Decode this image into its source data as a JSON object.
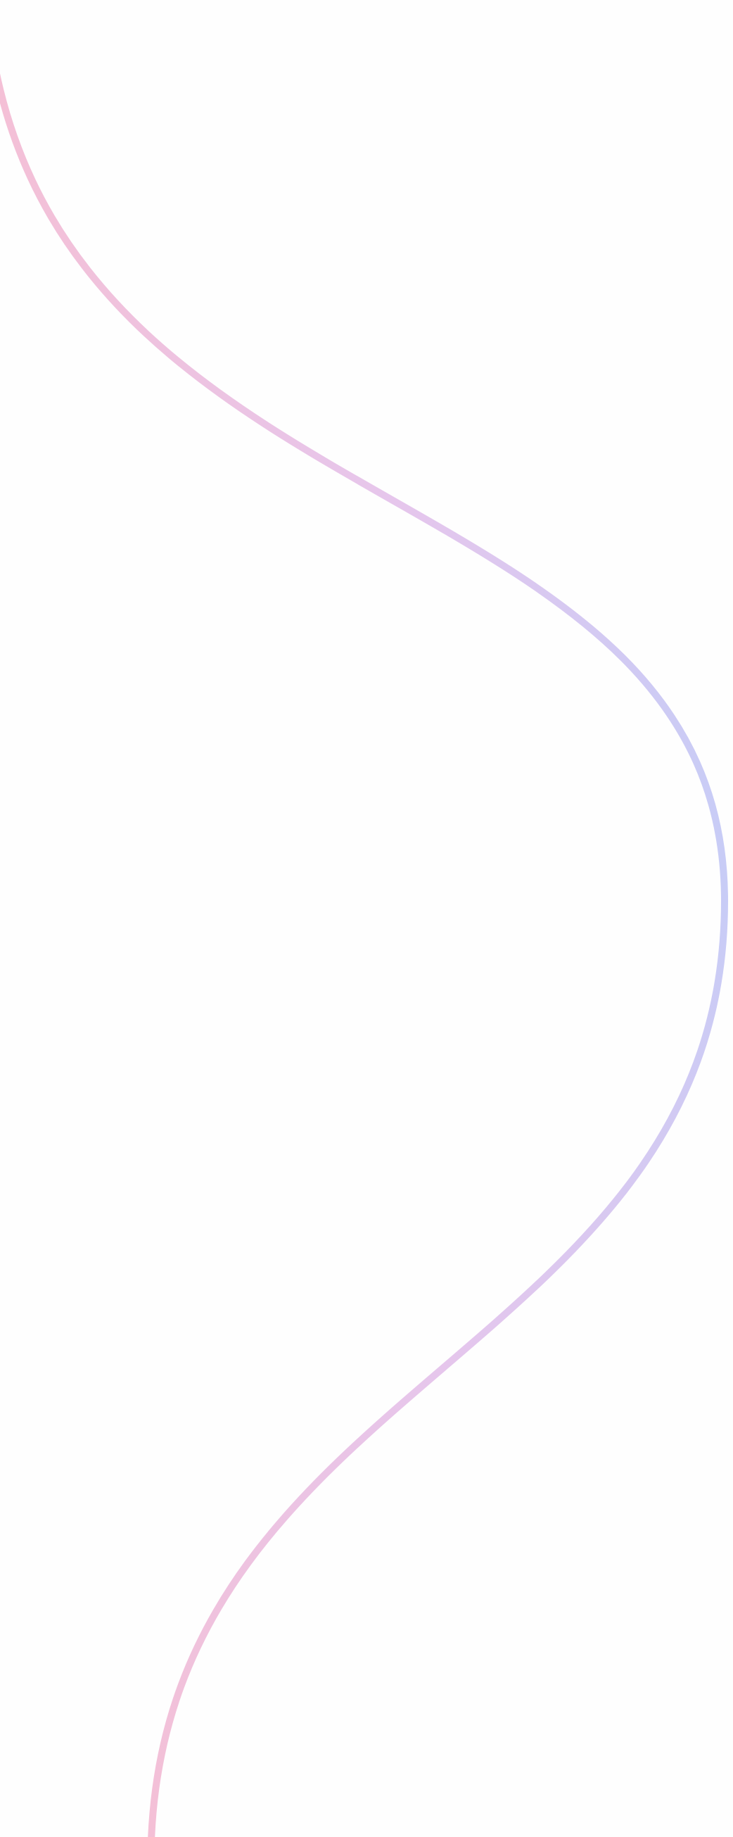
{
  "background": "#fefefe",
  "curve": {
    "gradient_start": "#f4c0d6",
    "gradient_mid": "#e6c6ec",
    "gradient_end": "#c8ccf6"
  }
}
